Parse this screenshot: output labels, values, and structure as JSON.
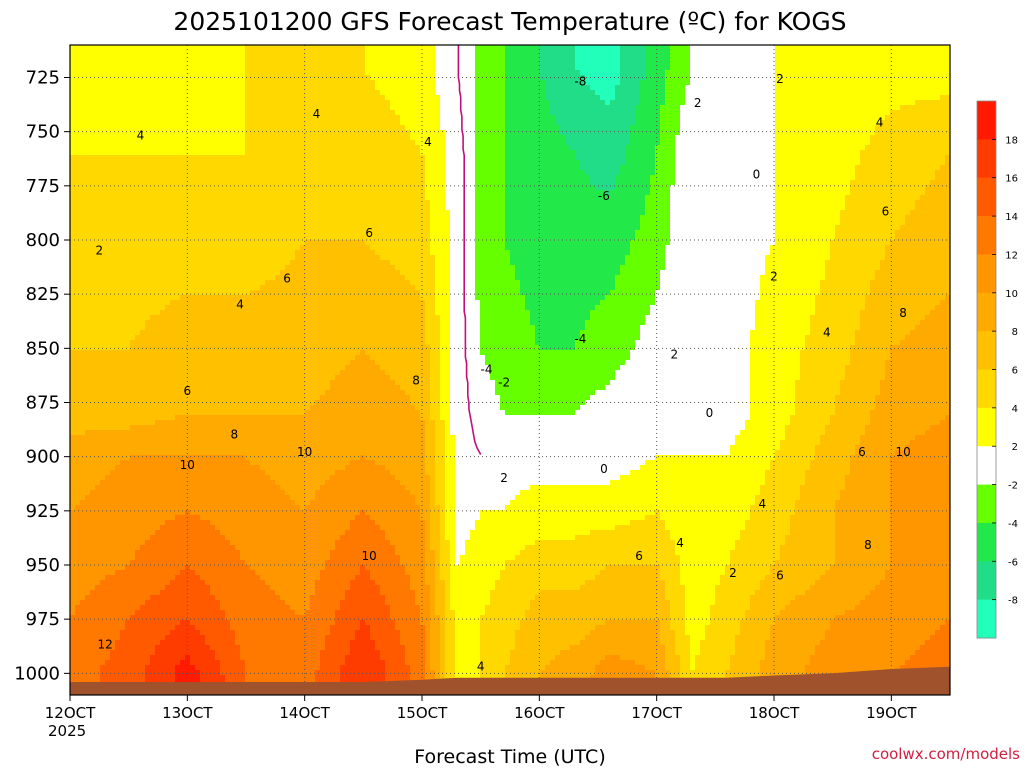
{
  "chart_data": {
    "type": "heatmap",
    "title": "2025101200 GFS Forecast Temperature (ºC) for KOGS",
    "xlabel": "Forecast Time (UTC)",
    "ylabel": "",
    "credit": "coolwx.com/models",
    "x_ticks": [
      "12OCT",
      "13OCT",
      "14OCT",
      "15OCT",
      "16OCT",
      "17OCT",
      "18OCT",
      "19OCT"
    ],
    "x_year": "2025",
    "xlim": [
      12.0,
      19.5
    ],
    "y_ticks": [
      725,
      750,
      775,
      800,
      825,
      850,
      875,
      900,
      925,
      950,
      975,
      1000
    ],
    "ylim": [
      1010,
      710
    ],
    "y_scale": "pressure (hPa), increasing downward",
    "grid": true,
    "colorbar": {
      "labels": [
        "18",
        "16",
        "14",
        "12",
        "10",
        "8",
        "6",
        "4",
        "2",
        "-2",
        "-4",
        "-6",
        "-8"
      ],
      "bins": [
        {
          "from": 18,
          "to": 20,
          "color": "#ff1a00"
        },
        {
          "from": 16,
          "to": 18,
          "color": "#ff3c00"
        },
        {
          "from": 14,
          "to": 16,
          "color": "#ff5a00"
        },
        {
          "from": 12,
          "to": 14,
          "color": "#ff7800"
        },
        {
          "from": 10,
          "to": 12,
          "color": "#ff9600"
        },
        {
          "from": 8,
          "to": 10,
          "color": "#ffaa00"
        },
        {
          "from": 6,
          "to": 8,
          "color": "#ffc000"
        },
        {
          "from": 4,
          "to": 6,
          "color": "#ffd800"
        },
        {
          "from": 2,
          "to": 4,
          "color": "#ffff00"
        },
        {
          "from": -2,
          "to": 2,
          "color": "#ffffff"
        },
        {
          "from": -4,
          "to": -2,
          "color": "#66ff00"
        },
        {
          "from": -6,
          "to": -4,
          "color": "#22e84a"
        },
        {
          "from": -8,
          "to": -6,
          "color": "#22dd88"
        },
        {
          "from": -10,
          "to": -8,
          "color": "#22ffbb"
        }
      ]
    },
    "columns_x": [
      12.0,
      12.5,
      13.0,
      13.5,
      14.0,
      14.5,
      15.0,
      15.3,
      15.5,
      15.7,
      16.0,
      16.3,
      16.6,
      17.0,
      17.3,
      17.6,
      18.0,
      18.5,
      19.0,
      19.5
    ],
    "levels": [
      {
        "p": 720,
        "temps": [
          3,
          3,
          3,
          4,
          4,
          4,
          3,
          0,
          -3,
          -4,
          -6,
          -8,
          -9,
          -5,
          -2,
          1,
          2,
          2,
          3,
          3
        ]
      },
      {
        "p": 760,
        "temps": [
          4,
          4,
          4,
          4,
          5,
          5,
          4,
          1,
          -3,
          -4,
          -5,
          -6,
          -7,
          -4,
          0,
          1,
          2,
          3,
          5,
          6
        ]
      },
      {
        "p": 800,
        "temps": [
          4,
          5,
          5,
          5,
          6,
          6,
          5,
          1,
          -3,
          -4,
          -5,
          -5,
          -5,
          -3,
          0,
          1,
          2,
          4,
          6,
          7
        ]
      },
      {
        "p": 850,
        "temps": [
          6,
          6,
          7,
          7,
          7,
          8,
          7,
          1,
          -2,
          -3,
          -4,
          -4,
          -3,
          -1,
          1,
          1,
          3,
          5,
          8,
          9
        ]
      },
      {
        "p": 880,
        "temps": [
          7,
          7,
          8,
          8,
          8,
          9,
          8,
          1,
          -1,
          -2,
          -2,
          -2,
          -1,
          0,
          1,
          1,
          3,
          6,
          9,
          10
        ]
      },
      {
        "p": 900,
        "temps": [
          9,
          10,
          10,
          10,
          9,
          10,
          9,
          1,
          0,
          1,
          1,
          1,
          1,
          2,
          2,
          2,
          4,
          7,
          10,
          11
        ]
      },
      {
        "p": 925,
        "temps": [
          10,
          11,
          12,
          11,
          10,
          12,
          10,
          1,
          2,
          2,
          3,
          3,
          3,
          4,
          2,
          3,
          5,
          8,
          10,
          11
        ]
      },
      {
        "p": 950,
        "temps": [
          11,
          12,
          14,
          12,
          11,
          14,
          11,
          2,
          3,
          4,
          5,
          5,
          6,
          6,
          3,
          4,
          6,
          8,
          10,
          11
        ]
      },
      {
        "p": 975,
        "temps": [
          12,
          14,
          16,
          13,
          12,
          16,
          12,
          3,
          4,
          5,
          7,
          7,
          8,
          8,
          3,
          5,
          8,
          10,
          11,
          12
        ]
      },
      {
        "p": 1000,
        "temps": [
          13,
          15,
          19,
          14,
          13,
          18,
          13,
          3,
          4,
          6,
          8,
          9,
          11,
          10,
          4,
          6,
          9,
          11,
          12,
          13
        ]
      }
    ],
    "surface_pressure": [
      1004,
      1004,
      1004,
      1004,
      1004,
      1004,
      1003,
      1002,
      1002,
      1002,
      1002,
      1002,
      1002,
      1002,
      1002,
      1002,
      1001,
      1000,
      998,
      997
    ],
    "contour_labels": [
      {
        "x": 12.25,
        "p": 805,
        "text": "2"
      },
      {
        "x": 12.6,
        "p": 752,
        "text": "4"
      },
      {
        "x": 13.0,
        "p": 870,
        "text": "6"
      },
      {
        "x": 13.4,
        "p": 890,
        "text": "8"
      },
      {
        "x": 13.0,
        "p": 904,
        "text": "10"
      },
      {
        "x": 12.3,
        "p": 987,
        "text": "12"
      },
      {
        "x": 14.1,
        "p": 742,
        "text": "4"
      },
      {
        "x": 13.45,
        "p": 830,
        "text": "4"
      },
      {
        "x": 13.85,
        "p": 818,
        "text": "6"
      },
      {
        "x": 14.55,
        "p": 797,
        "text": "6"
      },
      {
        "x": 14.95,
        "p": 865,
        "text": "8"
      },
      {
        "x": 14.0,
        "p": 898,
        "text": "10"
      },
      {
        "x": 14.55,
        "p": 946,
        "text": "10"
      },
      {
        "x": 15.05,
        "p": 755,
        "text": "4"
      },
      {
        "x": 15.5,
        "p": 997,
        "text": "4"
      },
      {
        "x": 15.7,
        "p": 910,
        "text": "2"
      },
      {
        "x": 15.55,
        "p": 860,
        "text": "-4"
      },
      {
        "x": 15.7,
        "p": 866,
        "text": "-2"
      },
      {
        "x": 16.35,
        "p": 727,
        "text": "-8"
      },
      {
        "x": 16.55,
        "p": 780,
        "text": "-6"
      },
      {
        "x": 16.35,
        "p": 846,
        "text": "-4"
      },
      {
        "x": 16.55,
        "p": 906,
        "text": "0"
      },
      {
        "x": 16.85,
        "p": 946,
        "text": "6"
      },
      {
        "x": 17.2,
        "p": 940,
        "text": "4"
      },
      {
        "x": 17.15,
        "p": 853,
        "text": "2"
      },
      {
        "x": 17.45,
        "p": 880,
        "text": "0"
      },
      {
        "x": 17.35,
        "p": 737,
        "text": "2"
      },
      {
        "x": 17.85,
        "p": 770,
        "text": "0"
      },
      {
        "x": 18.05,
        "p": 726,
        "text": "2"
      },
      {
        "x": 18.0,
        "p": 817,
        "text": "2"
      },
      {
        "x": 17.65,
        "p": 954,
        "text": "2"
      },
      {
        "x": 18.05,
        "p": 955,
        "text": "6"
      },
      {
        "x": 17.9,
        "p": 922,
        "text": "4"
      },
      {
        "x": 18.45,
        "p": 843,
        "text": "4"
      },
      {
        "x": 18.75,
        "p": 898,
        "text": "6"
      },
      {
        "x": 18.8,
        "p": 941,
        "text": "8"
      },
      {
        "x": 18.9,
        "p": 746,
        "text": "4"
      },
      {
        "x": 18.95,
        "p": 787,
        "text": "6"
      },
      {
        "x": 19.1,
        "p": 898,
        "text": "10"
      },
      {
        "x": 19.1,
        "p": 834,
        "text": "8"
      }
    ]
  }
}
